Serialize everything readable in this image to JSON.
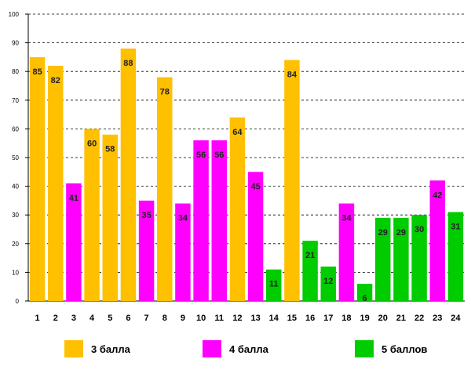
{
  "chart_data": {
    "type": "bar",
    "title": "",
    "xlabel": "",
    "ylabel": "",
    "ylim": [
      0,
      100
    ],
    "y_ticks": [
      "0",
      "10",
      "20",
      "30",
      "40",
      "50",
      "60",
      "70",
      "80",
      "90",
      "100"
    ],
    "grid": true,
    "categories": [
      "1",
      "2",
      "3",
      "4",
      "5",
      "6",
      "7",
      "8",
      "9",
      "10",
      "11",
      "12",
      "13",
      "14",
      "15",
      "16",
      "17",
      "18",
      "19",
      "20",
      "21",
      "22",
      "23",
      "24"
    ],
    "values": [
      85,
      82,
      41,
      60,
      58,
      88,
      35,
      78,
      34,
      56,
      56,
      64,
      45,
      11,
      84,
      21,
      12,
      34,
      6,
      29,
      29,
      30,
      42,
      31
    ],
    "series_by_bar": [
      "3 балла",
      "3 балла",
      "4 балла",
      "3 балла",
      "3 балла",
      "3 балла",
      "4 балла",
      "3 балла",
      "4 балла",
      "4 балла",
      "4 балла",
      "3 балла",
      "4 балла",
      "5 баллов",
      "3 балла",
      "5 баллов",
      "5 баллов",
      "4 балла",
      "5 баллов",
      "5 баллов",
      "5 баллов",
      "5 баллов",
      "4 балла",
      "5 баллов"
    ],
    "legend": [
      {
        "name": "3 балла",
        "color": "#FFC000"
      },
      {
        "name": "4 балла",
        "color": "#FF00FF"
      },
      {
        "name": "5 баллов",
        "color": "#00CC00"
      }
    ],
    "legend_position": "bottom"
  }
}
